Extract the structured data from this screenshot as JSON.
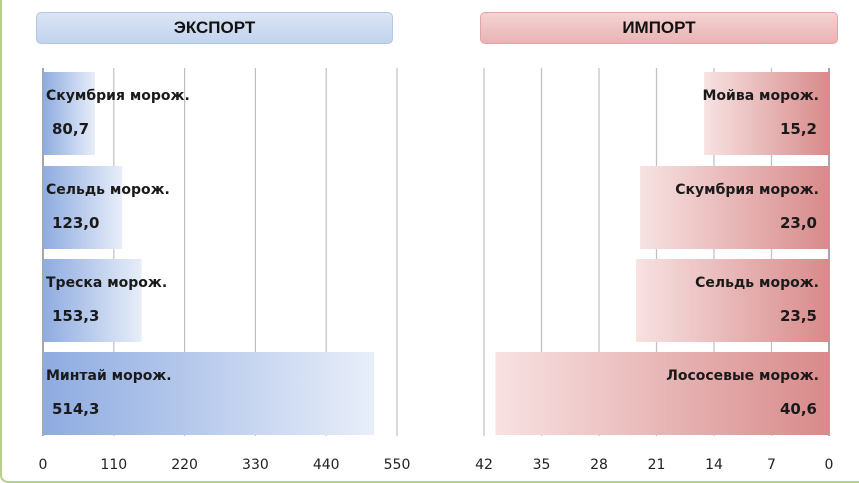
{
  "chart_data": [
    {
      "type": "bar",
      "orientation": "horizontal",
      "title": "ЭКСПОРТ",
      "categories": [
        "Скумбрия морож.",
        "Сельдь морож.",
        "Треска морож.",
        "Минтай морож."
      ],
      "values": [
        80.7,
        123.0,
        153.3,
        514.3
      ],
      "value_labels": [
        "80,7",
        "123,0",
        "153,3",
        "514,3"
      ],
      "xlim": [
        0,
        550
      ],
      "ticks": [
        0,
        110,
        220,
        330,
        440,
        550
      ],
      "tick_labels": [
        "0",
        "110",
        "220",
        "330",
        "440",
        "550"
      ],
      "reversed": false,
      "grid": true,
      "colors": {
        "start": "#8eabe0",
        "end": "#e8eef9"
      }
    },
    {
      "type": "bar",
      "orientation": "horizontal",
      "title": "ИМПОРТ",
      "categories": [
        "Мойва морож.",
        "Скумбрия морож.",
        "Сельдь морож.",
        "Лососевые морож."
      ],
      "values": [
        15.2,
        23.0,
        23.5,
        40.6
      ],
      "value_labels": [
        "15,2",
        "23,0",
        "23,5",
        "40,6"
      ],
      "xlim": [
        0,
        42
      ],
      "ticks": [
        42,
        35,
        28,
        21,
        14,
        7,
        0
      ],
      "tick_labels": [
        "42",
        "35",
        "28",
        "21",
        "14",
        "7",
        "0"
      ],
      "reversed": true,
      "grid": true,
      "colors": {
        "start": "#f7e2e2",
        "end": "#d88a8a"
      }
    }
  ]
}
